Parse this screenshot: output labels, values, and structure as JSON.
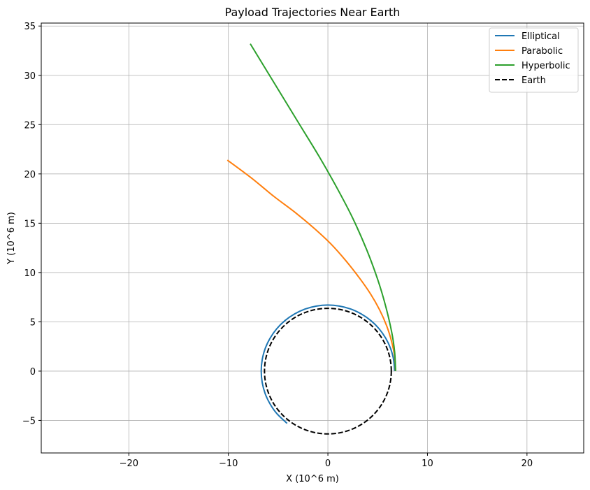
{
  "chart_data": {
    "type": "line",
    "title": "Payload Trajectories Near Earth",
    "xlabel": "X (10^6 m)",
    "ylabel": "Y (10^6 m)",
    "xlim": [
      -28.8,
      25.7
    ],
    "ylim": [
      -8.3,
      35.3
    ],
    "xticks": [
      -20,
      -10,
      0,
      10,
      20
    ],
    "yticks": [
      -5,
      0,
      5,
      10,
      15,
      20,
      25,
      30,
      35
    ],
    "xtick_labels": [
      "−20",
      "−10",
      "0",
      "10",
      "20"
    ],
    "ytick_labels": [
      "−5",
      "0",
      "5",
      "10",
      "15",
      "20",
      "25",
      "30",
      "35"
    ],
    "grid": true,
    "legend_position": "top-right",
    "series": [
      {
        "name": "Elliptical",
        "color": "#1f77b4",
        "style": "solid",
        "points": [
          [
            6.7,
            0
          ],
          [
            6.6,
            1.16
          ],
          [
            6.3,
            2.29
          ],
          [
            5.8,
            3.35
          ],
          [
            5.13,
            4.31
          ],
          [
            4.31,
            5.13
          ],
          [
            3.35,
            5.8
          ],
          [
            2.29,
            6.3
          ],
          [
            1.16,
            6.6
          ],
          [
            0,
            6.7
          ],
          [
            -1.16,
            6.6
          ],
          [
            -2.29,
            6.3
          ],
          [
            -3.35,
            5.8
          ],
          [
            -4.31,
            5.13
          ],
          [
            -5.13,
            4.31
          ],
          [
            -5.8,
            3.35
          ],
          [
            -6.3,
            2.29
          ],
          [
            -6.6,
            1.16
          ],
          [
            -6.7,
            0
          ],
          [
            -6.6,
            -1.16
          ],
          [
            -6.3,
            -2.29
          ],
          [
            -5.8,
            -3.35
          ],
          [
            -5.13,
            -4.31
          ],
          [
            -4.1,
            -5.3
          ]
        ]
      },
      {
        "name": "Parabolic",
        "color": "#ff7f0e",
        "style": "solid",
        "points": [
          [
            6.8,
            0
          ],
          [
            6.7,
            1.5
          ],
          [
            6.4,
            3.0
          ],
          [
            5.9,
            4.6
          ],
          [
            5.2,
            6.2
          ],
          [
            4.3,
            7.8
          ],
          [
            3.2,
            9.4
          ],
          [
            1.8,
            11.2
          ],
          [
            0.3,
            12.9
          ],
          [
            -1.4,
            14.5
          ],
          [
            -3.3,
            16.1
          ],
          [
            -5.4,
            17.7
          ],
          [
            -7.7,
            19.6
          ],
          [
            -10.1,
            21.4
          ]
        ]
      },
      {
        "name": "Hyperbolic",
        "color": "#2ca02c",
        "style": "solid",
        "points": [
          [
            6.8,
            0
          ],
          [
            6.7,
            2.0
          ],
          [
            6.4,
            4.0
          ],
          [
            5.8,
            6.6
          ],
          [
            5.0,
            9.3
          ],
          [
            3.9,
            12.3
          ],
          [
            2.5,
            15.5
          ],
          [
            0.9,
            18.6
          ],
          [
            -0.9,
            21.8
          ],
          [
            -2.9,
            25.1
          ],
          [
            -5.2,
            28.9
          ],
          [
            -7.8,
            33.2
          ]
        ]
      },
      {
        "name": "Earth",
        "color": "#000000",
        "style": "dashed",
        "circle": {
          "cx": 0,
          "cy": 0,
          "r": 6.37
        }
      }
    ]
  }
}
